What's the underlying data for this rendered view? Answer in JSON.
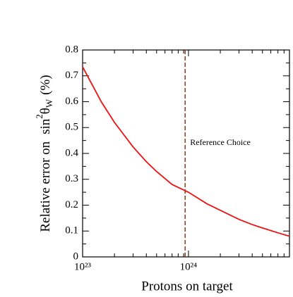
{
  "chart_data": {
    "type": "line",
    "xlabel": "Protons on target",
    "ylabel": {
      "prefix": "Relative error on",
      "func": "sin",
      "sup": "2",
      "sym": "θ",
      "sub": "W",
      "unit": "(%)"
    },
    "x": [
      1e+23,
      1.5e+23,
      2e+23,
      3e+23,
      4e+23,
      5e+23,
      7e+23,
      1e+24,
      1.5e+24,
      2e+24,
      3e+24,
      4e+24,
      5e+24,
      7e+24,
      9e+24
    ],
    "values": [
      0.735,
      0.6,
      0.52,
      0.425,
      0.368,
      0.33,
      0.28,
      0.25,
      0.205,
      0.18,
      0.145,
      0.125,
      0.112,
      0.093,
      0.08
    ],
    "color": "#ee1111",
    "xscale": "log",
    "xlim": [
      1e+23,
      9e+24
    ],
    "xticks": [
      {
        "value": 1e+23,
        "label": "10²³"
      },
      {
        "value": 1e+24,
        "label": "10²⁴"
      }
    ],
    "xminorticks": [
      2e+23,
      3e+23,
      4e+23,
      5e+23,
      6e+23,
      7e+23,
      8e+23,
      9e+23,
      2e+24,
      3e+24,
      4e+24,
      5e+24,
      6e+24,
      7e+24,
      8e+24
    ],
    "ylim": [
      0,
      0.8
    ],
    "yticks": [
      0,
      0.1,
      0.2,
      0.3,
      0.4,
      0.5,
      0.6,
      0.7,
      0.8
    ],
    "yminorticks": [
      0.05,
      0.15,
      0.25,
      0.35,
      0.45,
      0.55,
      0.65,
      0.75
    ],
    "reference_x": 9.3e+23,
    "reference_color": "#8b3a1a",
    "annotation": "Reference Choice"
  }
}
